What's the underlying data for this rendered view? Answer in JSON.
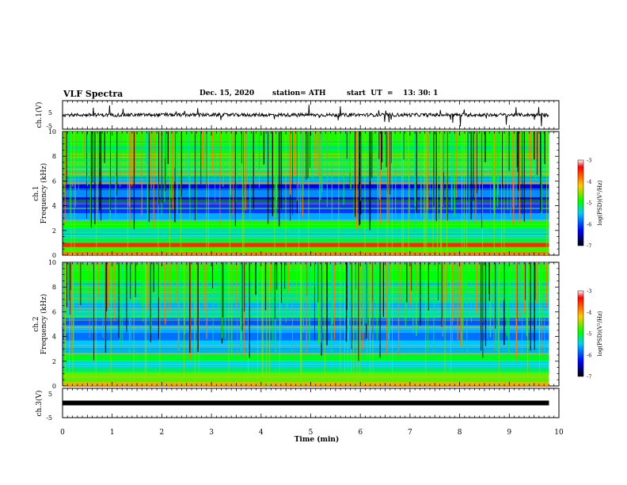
{
  "header": {
    "title": "VLF Spectra",
    "date": "Dec. 15, 2020",
    "station": "station= ATH",
    "start": "start  UT  =    13: 30: 1"
  },
  "panels": {
    "ch1_wave": {
      "ylabel": "ch.1(V)",
      "yticks": [
        "5",
        "-5"
      ]
    },
    "ch1_spec": {
      "ylabel": "ch.1\nFrequency (kHz)",
      "yticks": [
        "10",
        "8",
        "6",
        "4",
        "2",
        "0"
      ]
    },
    "ch2_spec": {
      "ylabel": "ch.2\nFrequency (kHz)",
      "yticks": [
        "10",
        "8",
        "6",
        "4",
        "2",
        "0"
      ]
    },
    "ch3_wave": {
      "ylabel": "ch.3(V)",
      "yticks": [
        "5",
        "-5"
      ]
    }
  },
  "colorbar": {
    "label": "log(PSD)(V²/Hz)",
    "ticks": [
      "-3",
      "-4",
      "-5",
      "-6",
      "-7"
    ],
    "colors": [
      "#ffffff",
      "#ff0000",
      "#ffcc00",
      "#00ff00",
      "#00ccff",
      "#0000ff",
      "#000000"
    ]
  },
  "xaxis": {
    "label": "Time (min)",
    "ticks": [
      "0",
      "1",
      "2",
      "3",
      "4",
      "5",
      "6",
      "7",
      "8",
      "9",
      "10"
    ]
  },
  "chart_data": {
    "type": "heatmap",
    "x_unit": "min",
    "xlim": [
      0,
      10
    ],
    "data_end_min": 9.8,
    "ch1_voltage_ylim": [
      -5,
      5
    ],
    "ch3_voltage_ylim": [
      -5,
      5
    ],
    "frequency_ylim_khz": [
      0,
      10
    ],
    "psd_log_range": [
      -7,
      -3
    ],
    "ch1_bands_khz": [
      {
        "f": 0.1,
        "level": -3.6
      },
      {
        "f": 0.5,
        "level": -4.6
      },
      {
        "f": 0.8,
        "level": -3.2
      },
      {
        "f": 1.2,
        "level": -5.0
      },
      {
        "f": 1.6,
        "level": -5.3
      },
      {
        "f": 2.0,
        "level": -5.2
      },
      {
        "f": 2.4,
        "level": -4.8
      },
      {
        "f": 3.1,
        "level": -5.6
      },
      {
        "f": 3.7,
        "level": -6.0
      },
      {
        "f": 4.4,
        "level": -6.3
      },
      {
        "f": 5.0,
        "level": -5.7
      },
      {
        "f": 5.5,
        "level": -6.2
      },
      {
        "f": 6.0,
        "level": -5.6
      },
      {
        "f": 6.5,
        "level": -5.2
      },
      {
        "f": 7.5,
        "level": -5.0
      },
      {
        "f": 8.5,
        "level": -4.9
      },
      {
        "f": 9.5,
        "level": -4.7
      }
    ],
    "ch2_bands_khz": [
      {
        "f": 0.1,
        "level": -3.8
      },
      {
        "f": 0.5,
        "level": -4.5
      },
      {
        "f": 0.9,
        "level": -4.4
      },
      {
        "f": 1.3,
        "level": -5.1
      },
      {
        "f": 1.8,
        "level": -5.4
      },
      {
        "f": 2.2,
        "level": -4.9
      },
      {
        "f": 2.8,
        "level": -5.6
      },
      {
        "f": 3.4,
        "level": -5.5
      },
      {
        "f": 4.0,
        "level": -5.8
      },
      {
        "f": 4.6,
        "level": -5.6
      },
      {
        "f": 5.2,
        "level": -5.9
      },
      {
        "f": 5.8,
        "level": -5.3
      },
      {
        "f": 6.4,
        "level": -5.6
      },
      {
        "f": 7.0,
        "level": -5.2
      },
      {
        "f": 8.0,
        "level": -5.0
      },
      {
        "f": 9.0,
        "level": -4.8
      },
      {
        "f": 9.7,
        "level": -4.7
      }
    ],
    "ch1_wave_rms_v": 0.6,
    "ch3_wave_level_v": 0.0
  }
}
